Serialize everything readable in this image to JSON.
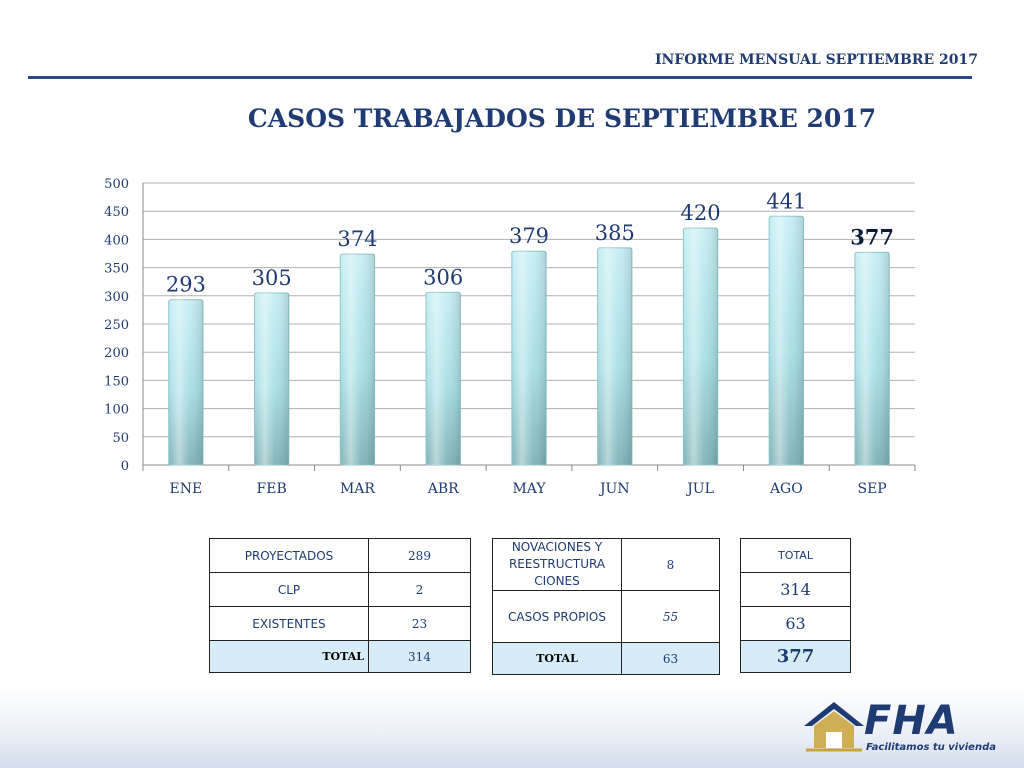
{
  "header": {
    "title": "INFORME MENSUAL SEPTIEMBRE 2017"
  },
  "slide_title": "CASOS TRABAJADOS DE SEPTIEMBRE 2017",
  "chart_data": {
    "type": "bar",
    "categories": [
      "ENE",
      "FEB",
      "MAR",
      "ABR",
      "MAY",
      "JUN",
      "JUL",
      "AGO",
      "SEP"
    ],
    "values": [
      293,
      305,
      374,
      306,
      379,
      385,
      420,
      441,
      377
    ],
    "ylim": [
      0,
      500
    ],
    "yticks": [
      0,
      50,
      100,
      150,
      200,
      250,
      300,
      350,
      400,
      450,
      500
    ],
    "grid": true,
    "bar_color": "#a8dfe6",
    "highlight_last_label_bold": true
  },
  "table1": {
    "rows": [
      {
        "label": "PROYECTADOS",
        "value": "289"
      },
      {
        "label": "CLP",
        "value": "2"
      },
      {
        "label": "EXISTENTES",
        "value": "23"
      }
    ],
    "total_label": "TOTAL",
    "total_value": "314"
  },
  "table2": {
    "rows": [
      {
        "label": "NOVACIONES Y REESTRUCTURA CIONES",
        "value": "8"
      },
      {
        "label": "CASOS PROPIOS",
        "value": "55"
      }
    ],
    "total_label": "TOTAL",
    "total_value": "63"
  },
  "table3": {
    "header": "TOTAL",
    "values": [
      "314",
      "63"
    ],
    "grand_total": "377"
  },
  "logo": {
    "text": "FHA",
    "slogan": "Facilitamos tu vivienda"
  },
  "colors": {
    "accent": "#1f3b73",
    "bar": "#a8dfe6",
    "total_row": "#d6edf8"
  }
}
